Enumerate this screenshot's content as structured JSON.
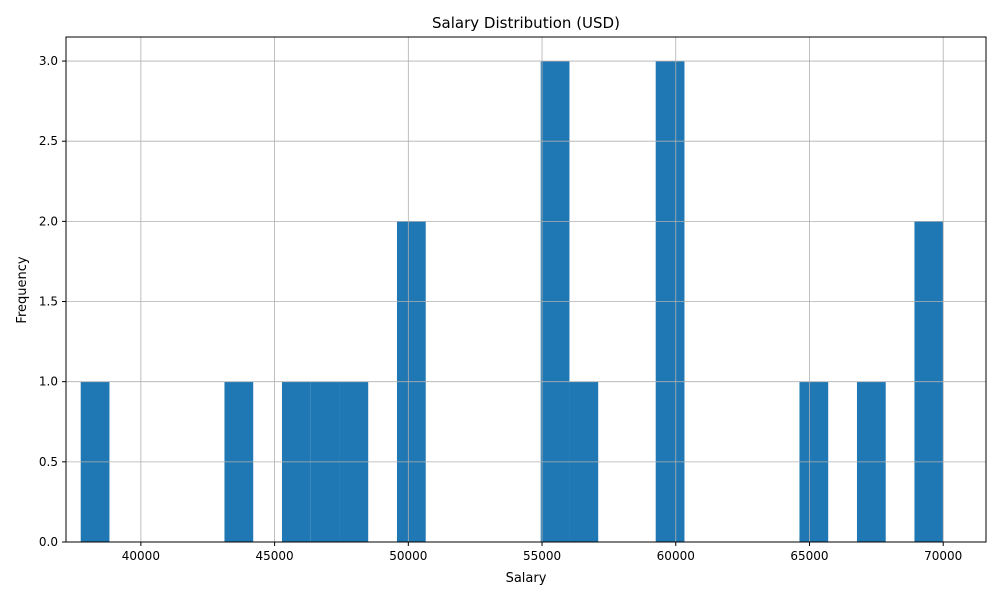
{
  "chart_data": {
    "type": "bar",
    "title": "Salary Distribution (USD)",
    "xlabel": "Salary",
    "ylabel": "Frequency",
    "xlim": [
      37200,
      71600
    ],
    "ylim": [
      0,
      3.15
    ],
    "bar_color": "#1f77b4",
    "grid": true,
    "xticks": [
      40000,
      45000,
      50000,
      55000,
      60000,
      65000,
      70000
    ],
    "yticks": [
      0.0,
      0.5,
      1.0,
      1.5,
      2.0,
      2.5,
      3.0
    ],
    "xtick_labels": [
      "40000",
      "45000",
      "50000",
      "55000",
      "60000",
      "65000",
      "70000"
    ],
    "ytick_labels": [
      "0.0",
      "0.5",
      "1.0",
      "1.5",
      "2.0",
      "2.5",
      "3.0"
    ],
    "bins": [
      {
        "x0": 37750,
        "x1": 38825,
        "count": 1
      },
      {
        "x0": 43125,
        "x1": 44200,
        "count": 1
      },
      {
        "x0": 45275,
        "x1": 46350,
        "count": 1
      },
      {
        "x0": 46350,
        "x1": 47425,
        "count": 1
      },
      {
        "x0": 47425,
        "x1": 48500,
        "count": 1
      },
      {
        "x0": 49575,
        "x1": 50650,
        "count": 2
      },
      {
        "x0": 54950,
        "x1": 56025,
        "count": 3
      },
      {
        "x0": 56025,
        "x1": 57100,
        "count": 1
      },
      {
        "x0": 59250,
        "x1": 60325,
        "count": 3
      },
      {
        "x0": 64625,
        "x1": 65700,
        "count": 1
      },
      {
        "x0": 66775,
        "x1": 67850,
        "count": 1
      },
      {
        "x0": 68925,
        "x1": 70000,
        "count": 2
      }
    ]
  }
}
